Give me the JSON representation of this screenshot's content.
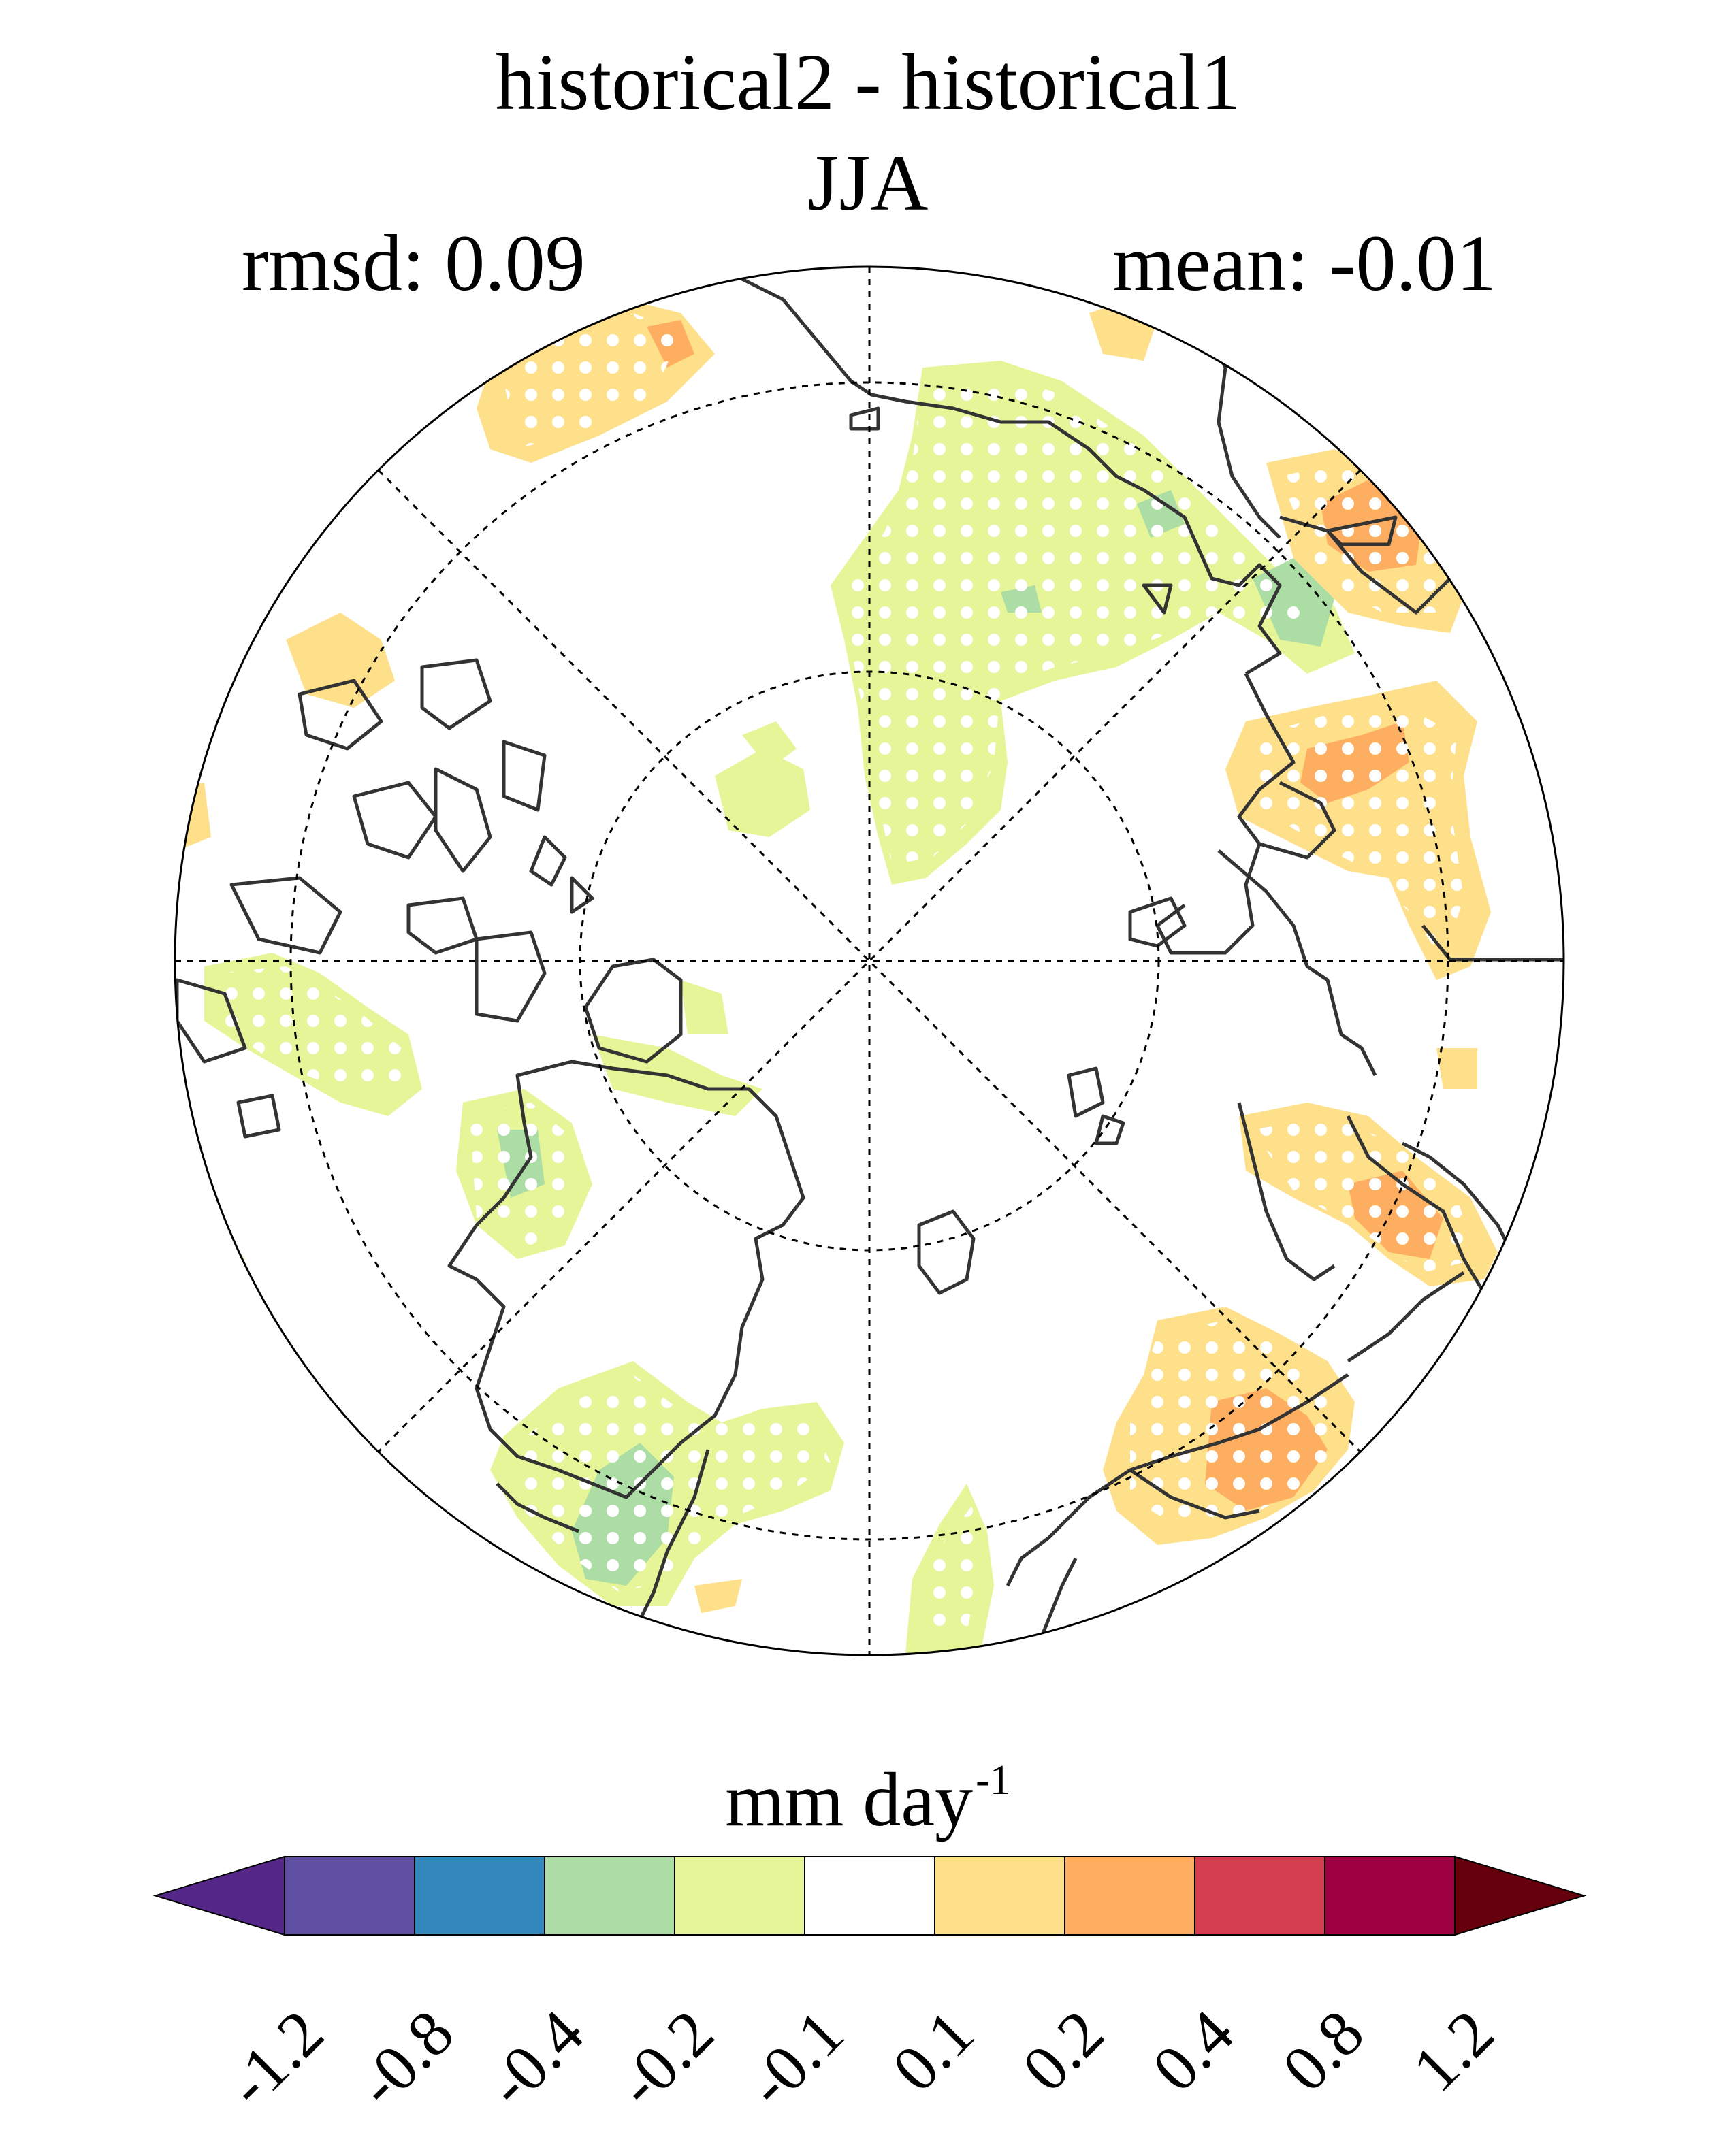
{
  "title": {
    "line1": "historical2 - historical1",
    "line2": "JJA"
  },
  "stats": {
    "rmsd_label": "rmsd: 0.09",
    "mean_label": "mean: -0.01"
  },
  "units": {
    "base": "mm day",
    "exponent": "-1"
  },
  "colorbar": {
    "ticks": [
      "-1.2",
      "-0.8",
      "-0.4",
      "-0.2",
      "-0.1",
      "0.1",
      "0.2",
      "0.4",
      "0.8",
      "1.2"
    ],
    "under_color": "#542788",
    "over_color": "#67000d",
    "colors": [
      "#5e4fa2",
      "#3288bd",
      "#abdda4",
      "#e6f598",
      "#ffffff",
      "#fee08b",
      "#fdae61",
      "#d53e4f",
      "#9e0142"
    ]
  },
  "map": {
    "projection": "north-polar-stereographic",
    "stippling_meaning": "significant",
    "anomaly_colors": {
      "strong_wet": "#fdae61",
      "wet": "#fee08b",
      "dry": "#e6f598",
      "strong_dry": "#abdda4"
    },
    "coastline_color": "#333333"
  }
}
